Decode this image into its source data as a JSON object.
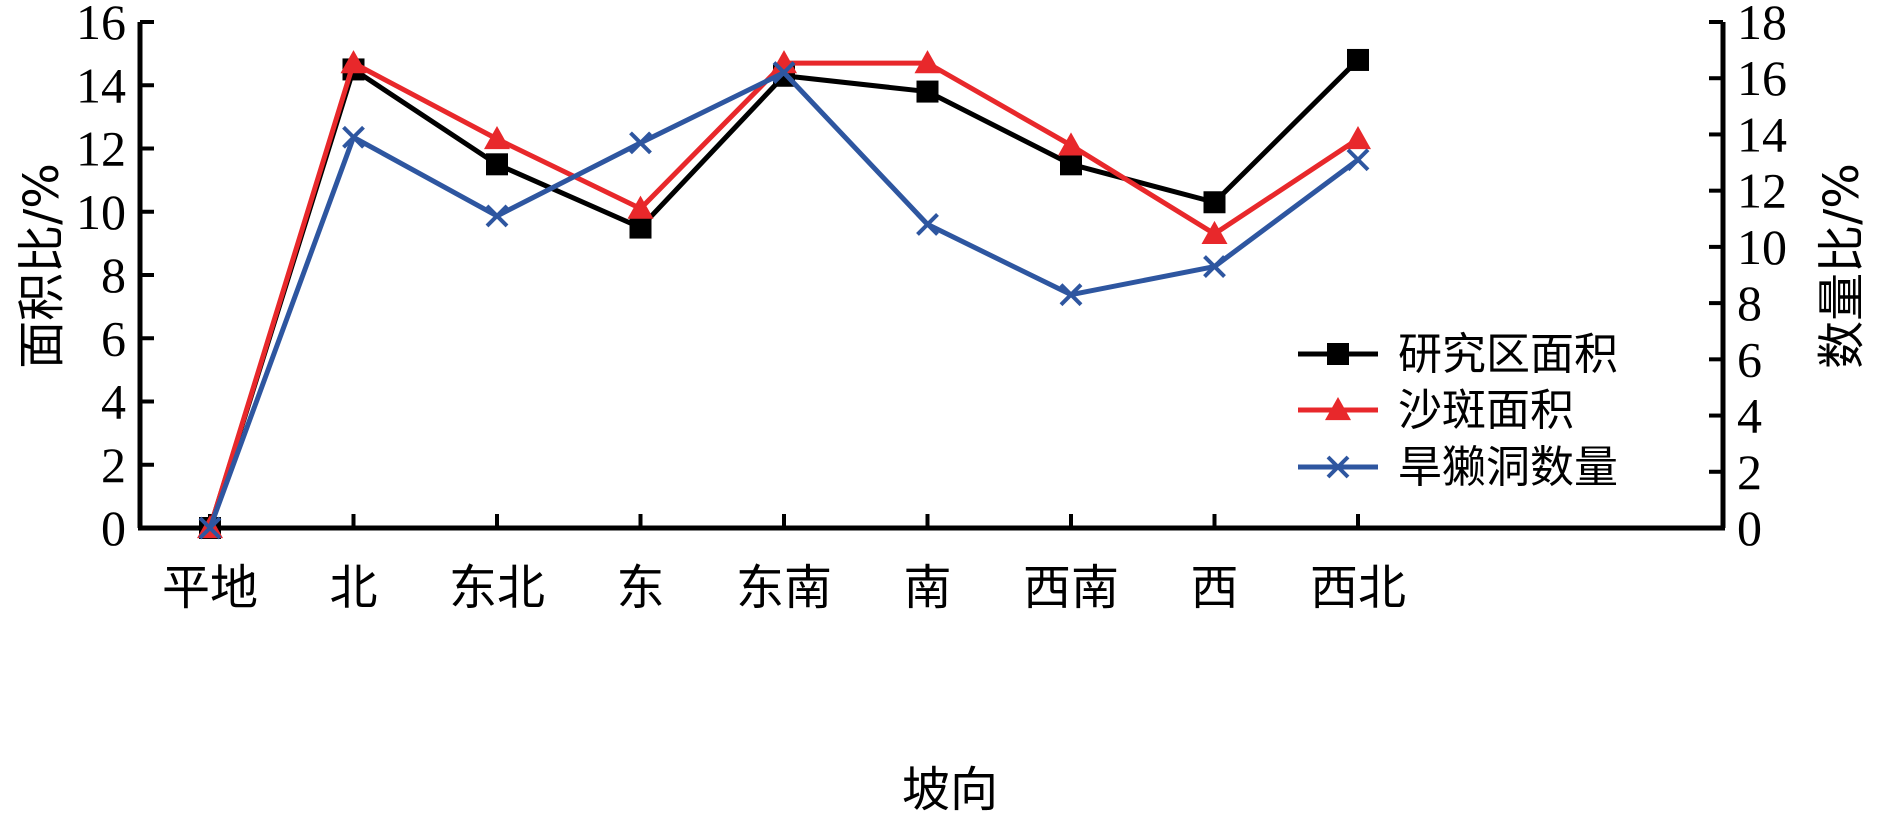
{
  "chart_data": {
    "type": "line",
    "xlabel": "坡向",
    "ylabel_left": "面积比/%",
    "ylabel_right": "数量比/%",
    "categories": [
      "平地",
      "北",
      "东北",
      "东",
      "东南",
      "南",
      "西南",
      "西",
      "西北"
    ],
    "ylim_left": [
      0,
      16
    ],
    "ylim_right": [
      0,
      18
    ],
    "yticks_left": [
      "0",
      "2",
      "4",
      "6",
      "8",
      "10",
      "12",
      "14",
      "16"
    ],
    "yticks_right": [
      "0",
      "2",
      "4",
      "6",
      "8",
      "10",
      "12",
      "14",
      "16",
      "18"
    ],
    "grid": false,
    "legend_position": "lower-right",
    "series": [
      {
        "name": "研究区面积",
        "axis": "left",
        "color": "#000000",
        "marker": "square",
        "values": [
          0.0,
          14.5,
          11.5,
          9.5,
          14.3,
          13.8,
          11.5,
          10.3,
          14.8
        ]
      },
      {
        "name": "沙斑面积",
        "axis": "left",
        "color": "#e8282b",
        "marker": "triangle",
        "values": [
          0.0,
          14.7,
          12.3,
          10.1,
          14.7,
          14.7,
          12.1,
          9.3,
          12.3
        ]
      },
      {
        "name": "旱獭洞数量",
        "axis": "right",
        "color": "#2e56a0",
        "marker": "x",
        "values": [
          0.0,
          13.9,
          11.1,
          13.7,
          16.2,
          10.8,
          8.3,
          9.3,
          13.1
        ]
      }
    ]
  }
}
